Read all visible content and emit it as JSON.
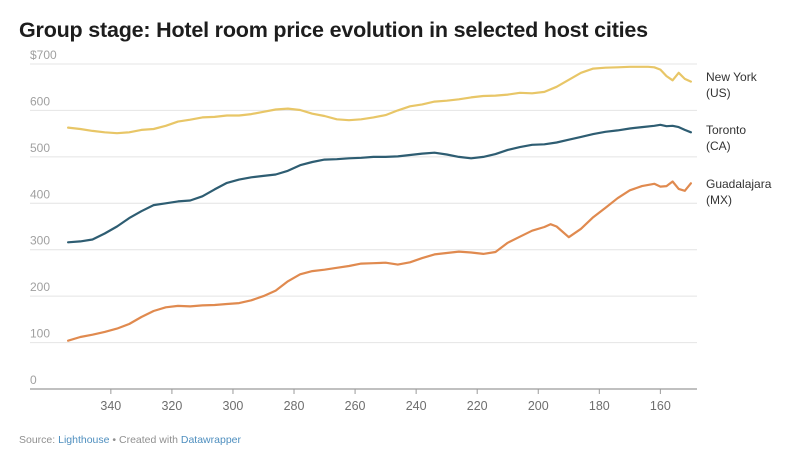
{
  "header": {
    "title": "Group stage: Hotel room price evolution in selected host cities"
  },
  "footer": {
    "source_prefix": "Source: ",
    "source_name": "Lighthouse",
    "separator": " • Created with ",
    "tool_name": "Datawrapper"
  },
  "chart_data": {
    "type": "line",
    "title": "Group stage: Hotel room price evolution in selected host cities",
    "xlabel": "",
    "ylabel": "",
    "x_reversed": true,
    "xlim": [
      356,
      148
    ],
    "ylim": [
      0,
      700
    ],
    "x_ticks": [
      340,
      320,
      300,
      280,
      260,
      240,
      220,
      200,
      180,
      160
    ],
    "x_tick_labels": [
      "340",
      "320",
      "300",
      "280",
      "260",
      "240",
      "220",
      "200",
      "180",
      "160"
    ],
    "y_ticks": [
      0,
      100,
      200,
      300,
      400,
      500,
      600,
      700
    ],
    "y_tick_labels": [
      "0",
      "100",
      "200",
      "300",
      "400",
      "500",
      "600",
      "$700"
    ],
    "grid": true,
    "legend": "direct labels at right end of lines",
    "series": [
      {
        "name": "New York (US)",
        "label_lines": [
          "New York",
          "(US)"
        ],
        "color": "#e8c667",
        "x": [
          354,
          350,
          346,
          342,
          338,
          334,
          330,
          326,
          322,
          318,
          314,
          310,
          306,
          302,
          298,
          294,
          290,
          286,
          282,
          278,
          274,
          270,
          266,
          262,
          258,
          254,
          250,
          246,
          242,
          238,
          234,
          230,
          226,
          222,
          218,
          214,
          210,
          206,
          202,
          198,
          194,
          190,
          186,
          182,
          178,
          174,
          170,
          166,
          164,
          162,
          160,
          158,
          156,
          154,
          152,
          150
        ],
        "values": [
          563,
          560,
          556,
          553,
          551,
          553,
          558,
          560,
          567,
          576,
          580,
          585,
          586,
          589,
          589,
          592,
          597,
          602,
          604,
          601,
          593,
          588,
          581,
          579,
          581,
          585,
          590,
          600,
          609,
          613,
          619,
          621,
          624,
          628,
          631,
          632,
          634,
          638,
          637,
          640,
          651,
          666,
          681,
          690,
          692,
          693,
          694,
          694,
          694,
          693,
          688,
          674,
          665,
          681,
          668,
          662
        ]
      },
      {
        "name": "Toronto (CA)",
        "label_lines": [
          "Toronto",
          "(CA)"
        ],
        "color": "#2e5d72",
        "x": [
          354,
          350,
          346,
          342,
          338,
          334,
          330,
          326,
          322,
          318,
          314,
          310,
          306,
          302,
          298,
          294,
          290,
          286,
          282,
          278,
          274,
          270,
          266,
          262,
          258,
          254,
          250,
          246,
          242,
          238,
          234,
          230,
          226,
          222,
          218,
          214,
          210,
          206,
          202,
          198,
          194,
          190,
          186,
          182,
          178,
          174,
          170,
          166,
          162,
          160,
          158,
          156,
          154,
          152,
          150
        ],
        "values": [
          316,
          318,
          322,
          335,
          350,
          368,
          383,
          396,
          400,
          404,
          406,
          415,
          430,
          444,
          451,
          456,
          459,
          462,
          470,
          482,
          489,
          494,
          495,
          497,
          498,
          500,
          500,
          501,
          504,
          507,
          509,
          505,
          500,
          497,
          500,
          506,
          515,
          521,
          526,
          527,
          531,
          537,
          543,
          549,
          554,
          557,
          561,
          564,
          567,
          569,
          566,
          567,
          564,
          558,
          553
        ]
      },
      {
        "name": "Guadalajara (MX)",
        "label_lines": [
          "Guadalajara",
          "(MX)"
        ],
        "color": "#e08a4f",
        "x": [
          354,
          350,
          346,
          342,
          338,
          334,
          330,
          326,
          322,
          318,
          314,
          310,
          306,
          302,
          298,
          294,
          290,
          286,
          282,
          278,
          274,
          270,
          266,
          262,
          258,
          254,
          250,
          246,
          242,
          238,
          234,
          230,
          226,
          222,
          218,
          214,
          210,
          206,
          202,
          198,
          196,
          194,
          190,
          186,
          182,
          178,
          174,
          170,
          166,
          162,
          160,
          158,
          156,
          154,
          152,
          150
        ],
        "values": [
          104,
          112,
          117,
          123,
          130,
          140,
          155,
          168,
          176,
          179,
          178,
          180,
          181,
          183,
          185,
          191,
          200,
          212,
          232,
          247,
          254,
          257,
          261,
          265,
          270,
          271,
          272,
          268,
          273,
          282,
          290,
          293,
          296,
          294,
          291,
          295,
          315,
          328,
          341,
          349,
          355,
          350,
          327,
          345,
          370,
          390,
          411,
          428,
          437,
          442,
          436,
          437,
          447,
          431,
          427,
          443
        ]
      }
    ]
  }
}
